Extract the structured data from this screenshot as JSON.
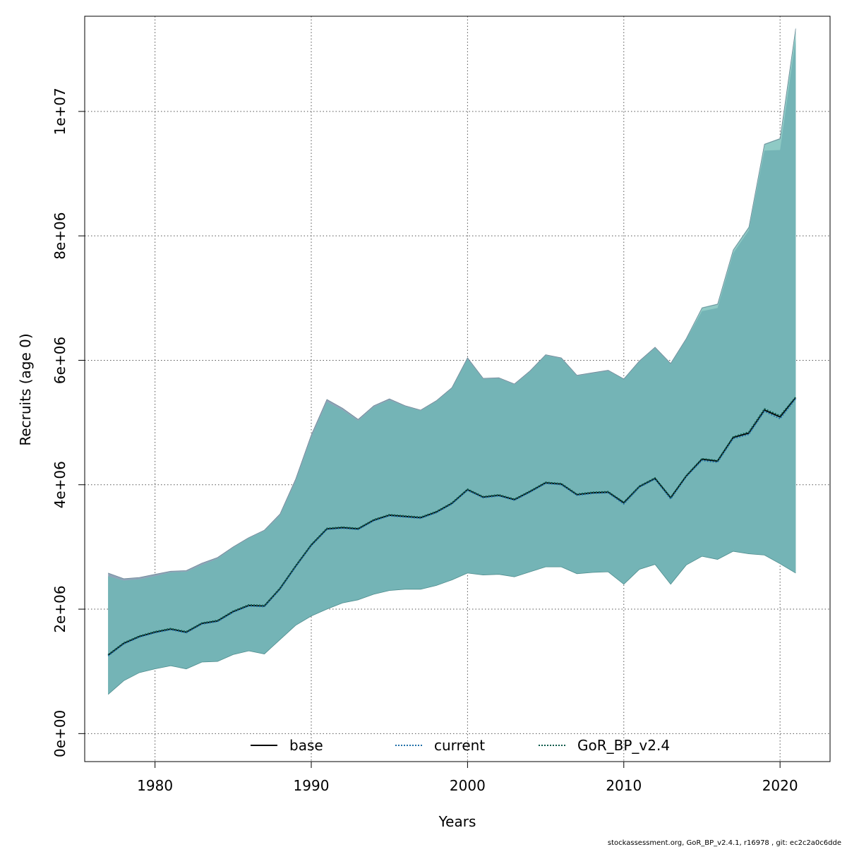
{
  "chart_data": {
    "type": "area",
    "xlabel": "Years",
    "ylabel": "Recruits (age 0)",
    "xlim": [
      1975.5,
      2023.2
    ],
    "ylim": [
      -450000,
      11530000
    ],
    "x_ticks": [
      1980,
      1990,
      2000,
      2010,
      2020
    ],
    "y_ticks": [
      0,
      2000000,
      4000000,
      6000000,
      8000000,
      10000000
    ],
    "x_tick_labels": [
      "1980",
      "1990",
      "2000",
      "2010",
      "2020"
    ],
    "y_tick_labels": [
      "0e+00",
      "2e+06",
      "4e+06",
      "6e+06",
      "8e+06",
      "1e+07"
    ],
    "grid": true,
    "legend_position": "bottom-center",
    "years": [
      1977,
      1978,
      1979,
      1980,
      1981,
      1982,
      1983,
      1984,
      1985,
      1986,
      1987,
      1988,
      1989,
      1990,
      1991,
      1992,
      1993,
      1994,
      1995,
      1996,
      1997,
      1998,
      1999,
      2000,
      2001,
      2002,
      2003,
      2004,
      2005,
      2006,
      2007,
      2008,
      2009,
      2010,
      2011,
      2012,
      2013,
      2014,
      2015,
      2016,
      2017,
      2018,
      2019,
      2020,
      2021
    ],
    "bands": [
      {
        "color": "#8fa3b8",
        "upper": [
          2580000,
          2490000,
          2510000,
          2560000,
          2610000,
          2620000,
          2740000,
          2830000,
          3000000,
          3150000,
          3270000,
          3530000,
          4090000,
          4800000,
          5370000,
          5230000,
          5050000,
          5270000,
          5380000,
          5270000,
          5200000,
          5350000,
          5560000,
          6040000,
          5710000,
          5720000,
          5620000,
          5830000,
          6090000,
          6040000,
          5760000,
          5800000,
          5840000,
          5700000,
          5990000,
          6210000,
          5950000,
          6350000,
          6840000,
          6900000,
          7770000,
          8130000,
          9470000,
          9560000,
          11330000
        ],
        "lower": [
          630000,
          850000,
          980000,
          1040000,
          1090000,
          1040000,
          1150000,
          1160000,
          1270000,
          1330000,
          1280000,
          1510000,
          1740000,
          1890000,
          2000000,
          2100000,
          2150000,
          2240000,
          2300000,
          2320000,
          2320000,
          2380000,
          2470000,
          2580000,
          2550000,
          2560000,
          2520000,
          2600000,
          2680000,
          2680000,
          2570000,
          2590000,
          2600000,
          2400000,
          2640000,
          2720000,
          2400000,
          2710000,
          2850000,
          2800000,
          2930000,
          2890000,
          2870000,
          2730000,
          2580000
        ]
      },
      {
        "color": "#8fcac5",
        "upper": [
          2530000,
          2460000,
          2480000,
          2530000,
          2590000,
          2600000,
          2710000,
          2810000,
          2990000,
          3140000,
          3260000,
          3510000,
          4060000,
          4760000,
          5330000,
          5200000,
          5030000,
          5250000,
          5360000,
          5260000,
          5190000,
          5340000,
          5550000,
          6020000,
          5700000,
          5710000,
          5610000,
          5820000,
          6080000,
          6030000,
          5750000,
          5790000,
          5830000,
          5700000,
          5980000,
          6200000,
          5940000,
          6340000,
          6850000,
          6910000,
          7780000,
          8150000,
          9480000,
          9570000,
          11350000
        ],
        "lower": [
          630000,
          850000,
          980000,
          1040000,
          1090000,
          1040000,
          1150000,
          1160000,
          1270000,
          1330000,
          1280000,
          1510000,
          1740000,
          1890000,
          2000000,
          2100000,
          2150000,
          2240000,
          2300000,
          2320000,
          2320000,
          2380000,
          2470000,
          2580000,
          2550000,
          2560000,
          2520000,
          2600000,
          2680000,
          2680000,
          2570000,
          2590000,
          2600000,
          2400000,
          2640000,
          2720000,
          2400000,
          2710000,
          2850000,
          2800000,
          2930000,
          2890000,
          2870000,
          2730000,
          2580000
        ]
      },
      {
        "color": "#74b4b6",
        "upper": [
          2530000,
          2460000,
          2480000,
          2530000,
          2590000,
          2600000,
          2710000,
          2810000,
          2990000,
          3140000,
          3260000,
          3510000,
          4060000,
          4760000,
          5330000,
          5200000,
          5030000,
          5250000,
          5360000,
          5260000,
          5190000,
          5340000,
          5550000,
          6020000,
          5700000,
          5710000,
          5610000,
          5820000,
          6080000,
          6030000,
          5750000,
          5790000,
          5830000,
          5700000,
          5980000,
          6200000,
          5940000,
          6340000,
          6790000,
          6840000,
          7720000,
          8090000,
          9370000,
          9380000,
          11160000
        ],
        "lower": [
          630000,
          850000,
          980000,
          1040000,
          1090000,
          1040000,
          1150000,
          1160000,
          1270000,
          1330000,
          1280000,
          1510000,
          1740000,
          1890000,
          2000000,
          2100000,
          2150000,
          2240000,
          2300000,
          2320000,
          2320000,
          2380000,
          2470000,
          2580000,
          2550000,
          2560000,
          2520000,
          2600000,
          2680000,
          2680000,
          2570000,
          2590000,
          2600000,
          2400000,
          2640000,
          2720000,
          2400000,
          2710000,
          2850000,
          2800000,
          2930000,
          2890000,
          2870000,
          2730000,
          2580000
        ]
      }
    ],
    "series": [
      {
        "name": "base",
        "color": "#000000",
        "dash": "solid",
        "values": [
          1260000,
          1450000,
          1560000,
          1630000,
          1680000,
          1630000,
          1770000,
          1810000,
          1960000,
          2060000,
          2050000,
          2330000,
          2690000,
          3030000,
          3290000,
          3310000,
          3290000,
          3430000,
          3510000,
          3490000,
          3470000,
          3560000,
          3700000,
          3920000,
          3800000,
          3830000,
          3760000,
          3890000,
          4030000,
          4010000,
          3840000,
          3870000,
          3880000,
          3710000,
          3970000,
          4100000,
          3790000,
          4140000,
          4410000,
          4380000,
          4760000,
          4830000,
          5200000,
          5090000,
          5400000
        ]
      },
      {
        "name": "current",
        "color": "#1f6fa8",
        "dash": "dotted",
        "values": [
          1250000,
          1440000,
          1550000,
          1620000,
          1670000,
          1620000,
          1760000,
          1800000,
          1950000,
          2050000,
          2040000,
          2320000,
          2680000,
          3020000,
          3280000,
          3300000,
          3280000,
          3420000,
          3500000,
          3480000,
          3460000,
          3550000,
          3690000,
          3910000,
          3790000,
          3820000,
          3750000,
          3880000,
          4020000,
          4000000,
          3830000,
          3860000,
          3870000,
          3690000,
          3960000,
          4090000,
          3770000,
          4130000,
          4390000,
          4360000,
          4740000,
          4810000,
          5180000,
          5060000,
          5380000
        ]
      },
      {
        "name": "GoR_BP_v2.4",
        "color": "#0b5a4a",
        "dash": "dotted",
        "values": [
          1270000,
          1460000,
          1570000,
          1640000,
          1690000,
          1640000,
          1780000,
          1820000,
          1970000,
          2070000,
          2060000,
          2340000,
          2700000,
          3040000,
          3300000,
          3320000,
          3300000,
          3440000,
          3520000,
          3500000,
          3480000,
          3570000,
          3710000,
          3930000,
          3810000,
          3840000,
          3770000,
          3900000,
          4040000,
          4020000,
          3850000,
          3880000,
          3890000,
          3720000,
          3980000,
          4110000,
          3800000,
          4150000,
          4420000,
          4390000,
          4770000,
          4850000,
          5220000,
          5110000,
          5410000
        ]
      }
    ]
  },
  "footnote": "stockassessment.org, GoR_BP_v2.4.1, r16978 , git: ec2c2a0c6dde"
}
